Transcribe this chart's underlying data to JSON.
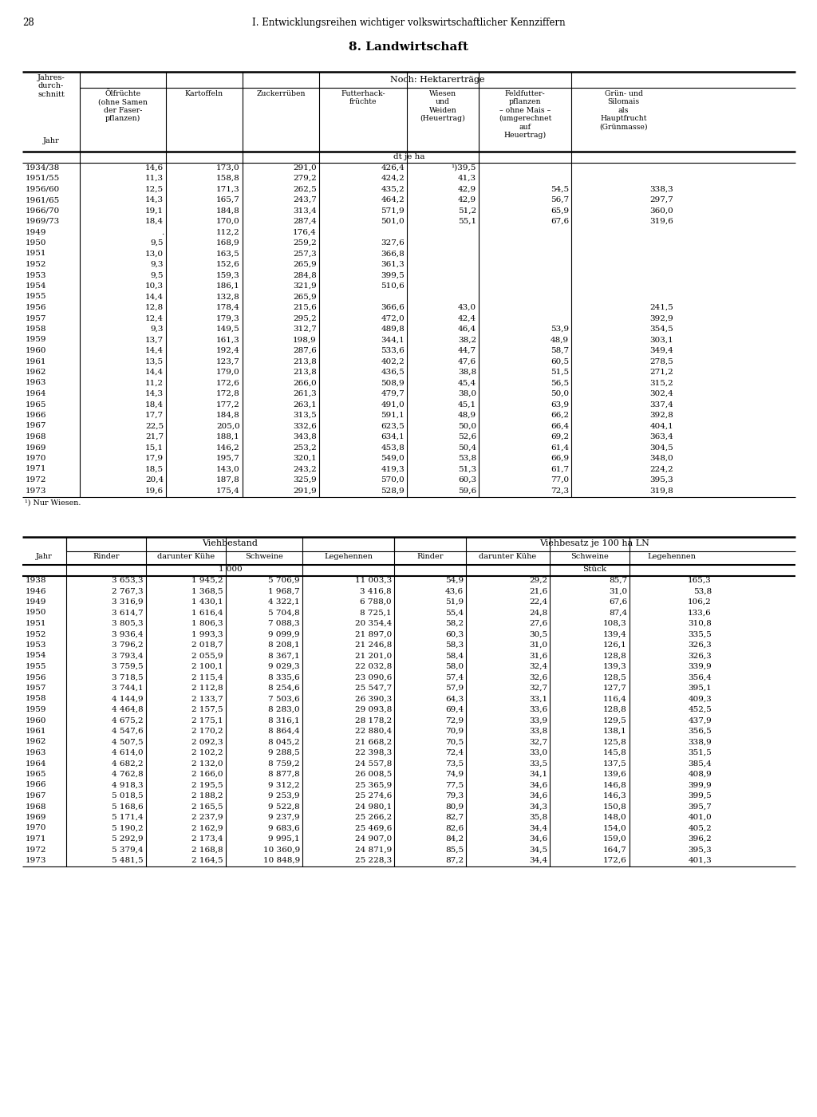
{
  "page_number": "28",
  "header_title": "I. Entwicklungsreihen wichtiger volkswirtschaftlicher Kennziffern",
  "section_title": "8. Landwirtschaft",
  "table1_span_header": "Noch: Hektarerträge",
  "table1_unit": "dt je ha",
  "table1_data": [
    [
      "1934/38",
      "14,6",
      "173,0",
      "291,0",
      "426,4",
      "¹)39,5",
      "",
      ""
    ],
    [
      "1951/55",
      "11,3",
      "158,8",
      "279,2",
      "424,2",
      "41,3",
      "",
      ""
    ],
    [
      "1956/60",
      "12,5",
      "171,3",
      "262,5",
      "435,2",
      "42,9",
      "54,5",
      "338,3"
    ],
    [
      "1961/65",
      "14,3",
      "165,7",
      "243,7",
      "464,2",
      "42,9",
      "56,7",
      "297,7"
    ],
    [
      "1966/70",
      "19,1",
      "184,8",
      "313,4",
      "571,9",
      "51,2",
      "65,9",
      "360,0"
    ],
    [
      "1969/73",
      "18,4",
      "170,0",
      "287,4",
      "501,0",
      "55,1",
      "67,6",
      "319,6"
    ],
    [
      "1949",
      ".",
      "112,2",
      "176,4",
      "",
      "",
      "",
      ""
    ],
    [
      "1950",
      "9,5",
      "168,9",
      "259,2",
      "327,6",
      "",
      "",
      ""
    ],
    [
      "1951",
      "13,0",
      "163,5",
      "257,3",
      "366,8",
      "",
      "",
      ""
    ],
    [
      "1952",
      "9,3",
      "152,6",
      "265,9",
      "361,3",
      "",
      "",
      ""
    ],
    [
      "1953",
      "9,5",
      "159,3",
      "284,8",
      "399,5",
      "",
      "",
      ""
    ],
    [
      "1954",
      "10,3",
      "186,1",
      "321,9",
      "510,6",
      "",
      "",
      ""
    ],
    [
      "1955",
      "14,4",
      "132,8",
      "265,9",
      "",
      "",
      "",
      ""
    ],
    [
      "1956",
      "12,8",
      "178,4",
      "215,6",
      "366,6",
      "43,0",
      "",
      "241,5"
    ],
    [
      "1957",
      "12,4",
      "179,3",
      "295,2",
      "472,0",
      "42,4",
      "",
      "392,9"
    ],
    [
      "1958",
      "9,3",
      "149,5",
      "312,7",
      "489,8",
      "46,4",
      "53,9",
      "354,5"
    ],
    [
      "1959",
      "13,7",
      "161,3",
      "198,9",
      "344,1",
      "38,2",
      "48,9",
      "303,1"
    ],
    [
      "1960",
      "14,4",
      "192,4",
      "287,6",
      "533,6",
      "44,7",
      "58,7",
      "349,4"
    ],
    [
      "1961",
      "13,5",
      "123,7",
      "213,8",
      "402,2",
      "47,6",
      "60,5",
      "278,5"
    ],
    [
      "1962",
      "14,4",
      "179,0",
      "213,8",
      "436,5",
      "38,8",
      "51,5",
      "271,2"
    ],
    [
      "1963",
      "11,2",
      "172,6",
      "266,0",
      "508,9",
      "45,4",
      "56,5",
      "315,2"
    ],
    [
      "1964",
      "14,3",
      "172,8",
      "261,3",
      "479,7",
      "38,0",
      "50,0",
      "302,4"
    ],
    [
      "1965",
      "18,4",
      "177,2",
      "263,1",
      "491,0",
      "45,1",
      "63,9",
      "337,4"
    ],
    [
      "1966",
      "17,7",
      "184,8",
      "313,5",
      "591,1",
      "48,9",
      "66,2",
      "392,8"
    ],
    [
      "1967",
      "22,5",
      "205,0",
      "332,6",
      "623,5",
      "50,0",
      "66,4",
      "404,1"
    ],
    [
      "1968",
      "21,7",
      "188,1",
      "343,8",
      "634,1",
      "52,6",
      "69,2",
      "363,4"
    ],
    [
      "1969",
      "15,1",
      "146,2",
      "253,2",
      "453,8",
      "50,4",
      "61,4",
      "304,5"
    ],
    [
      "1970",
      "17,9",
      "195,7",
      "320,1",
      "549,0",
      "53,8",
      "66,9",
      "348,0"
    ],
    [
      "1971",
      "18,5",
      "143,0",
      "243,2",
      "419,3",
      "51,3",
      "61,7",
      "224,2"
    ],
    [
      "1972",
      "20,4",
      "187,8",
      "325,9",
      "570,0",
      "60,3",
      "77,0",
      "395,3"
    ],
    [
      "1973",
      "19,6",
      "175,4",
      "291,9",
      "528,9",
      "59,6",
      "72,3",
      "319,8"
    ]
  ],
  "table1_footnote": "¹) Nur Wiesen.",
  "table2_data": [
    [
      "1938",
      "3 653,3",
      "1 945,2",
      "5 706,9",
      "11 003,3",
      "54,9",
      "29,2",
      "85,7",
      "165,3"
    ],
    [
      "1946",
      "2 767,3",
      "1 368,5",
      "1 968,7",
      "3 416,8",
      "43,6",
      "21,6",
      "31,0",
      "53,8"
    ],
    [
      "1949",
      "3 316,9",
      "1 430,1",
      "4 322,1",
      "6 788,0",
      "51,9",
      "22,4",
      "67,6",
      "106,2"
    ],
    [
      "1950",
      "3 614,7",
      "1 616,4",
      "5 704,8",
      "8 725,1",
      "55,4",
      "24,8",
      "87,4",
      "133,6"
    ],
    [
      "1951",
      "3 805,3",
      "1 806,3",
      "7 088,3",
      "20 354,4",
      "58,2",
      "27,6",
      "108,3",
      "310,8"
    ],
    [
      "1952",
      "3 936,4",
      "1 993,3",
      "9 099,9",
      "21 897,0",
      "60,3",
      "30,5",
      "139,4",
      "335,5"
    ],
    [
      "1953",
      "3 796,2",
      "2 018,7",
      "8 208,1",
      "21 246,8",
      "58,3",
      "31,0",
      "126,1",
      "326,3"
    ],
    [
      "1954",
      "3 793,4",
      "2 055,9",
      "8 367,1",
      "21 201,0",
      "58,4",
      "31,6",
      "128,8",
      "326,3"
    ],
    [
      "1955",
      "3 759,5",
      "2 100,1",
      "9 029,3",
      "22 032,8",
      "58,0",
      "32,4",
      "139,3",
      "339,9"
    ],
    [
      "1956",
      "3 718,5",
      "2 115,4",
      "8 335,6",
      "23 090,6",
      "57,4",
      "32,6",
      "128,5",
      "356,4"
    ],
    [
      "1957",
      "3 744,1",
      "2 112,8",
      "8 254,6",
      "25 547,7",
      "57,9",
      "32,7",
      "127,7",
      "395,1"
    ],
    [
      "1958",
      "4 144,9",
      "2 133,7",
      "7 503,6",
      "26 390,3",
      "64,3",
      "33,1",
      "116,4",
      "409,3"
    ],
    [
      "1959",
      "4 464,8",
      "2 157,5",
      "8 283,0",
      "29 093,8",
      "69,4",
      "33,6",
      "128,8",
      "452,5"
    ],
    [
      "1960",
      "4 675,2",
      "2 175,1",
      "8 316,1",
      "28 178,2",
      "72,9",
      "33,9",
      "129,5",
      "437,9"
    ],
    [
      "1961",
      "4 547,6",
      "2 170,2",
      "8 864,4",
      "22 880,4",
      "70,9",
      "33,8",
      "138,1",
      "356,5"
    ],
    [
      "1962",
      "4 507,5",
      "2 092,3",
      "8 045,2",
      "21 668,2",
      "70,5",
      "32,7",
      "125,8",
      "338,9"
    ],
    [
      "1963",
      "4 614,0",
      "2 102,2",
      "9 288,5",
      "22 398,3",
      "72,4",
      "33,0",
      "145,8",
      "351,5"
    ],
    [
      "1964",
      "4 682,2",
      "2 132,0",
      "8 759,2",
      "24 557,8",
      "73,5",
      "33,5",
      "137,5",
      "385,4"
    ],
    [
      "1965",
      "4 762,8",
      "2 166,0",
      "8 877,8",
      "26 008,5",
      "74,9",
      "34,1",
      "139,6",
      "408,9"
    ],
    [
      "1966",
      "4 918,3",
      "2 195,5",
      "9 312,2",
      "25 365,9",
      "77,5",
      "34,6",
      "146,8",
      "399,9"
    ],
    [
      "1967",
      "5 018,5",
      "2 188,2",
      "9 253,9",
      "25 274,6",
      "79,3",
      "34,6",
      "146,3",
      "399,5"
    ],
    [
      "1968",
      "5 168,6",
      "2 165,5",
      "9 522,8",
      "24 980,1",
      "80,9",
      "34,3",
      "150,8",
      "395,7"
    ],
    [
      "1969",
      "5 171,4",
      "2 237,9",
      "9 237,9",
      "25 266,2",
      "82,7",
      "35,8",
      "148,0",
      "401,0"
    ],
    [
      "1970",
      "5 190,2",
      "2 162,9",
      "9 683,6",
      "25 469,6",
      "82,6",
      "34,4",
      "154,0",
      "405,2"
    ],
    [
      "1971",
      "5 292,9",
      "2 173,4",
      "9 995,1",
      "24 907,0",
      "84,2",
      "34,6",
      "159,0",
      "396,2"
    ],
    [
      "1972",
      "5 379,4",
      "2 168,8",
      "10 360,9",
      "24 871,9",
      "85,5",
      "34,5",
      "164,7",
      "395,3"
    ],
    [
      "1973",
      "5 481,5",
      "2 164,5",
      "10 848,9",
      "25 228,3",
      "87,2",
      "34,4",
      "172,6",
      "401,3"
    ]
  ]
}
